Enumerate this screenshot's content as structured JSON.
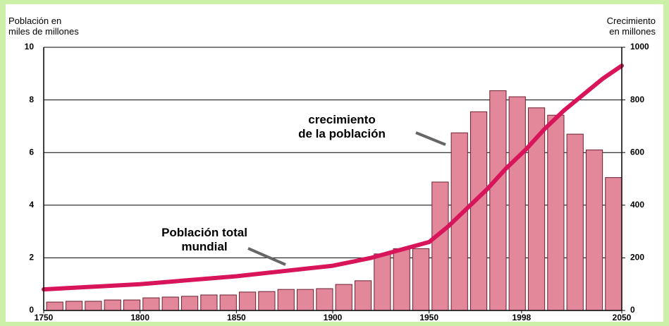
{
  "chart_data": {
    "type": "bar_line",
    "ylabel": [
      "Población en",
      "miles de millones"
    ],
    "y2label": [
      "Crecimiento",
      "en millones"
    ],
    "annotations": [
      {
        "lines": [
          "crecimiento",
          "de la población"
        ]
      },
      {
        "lines": [
          "Población total",
          "mundial"
        ]
      }
    ],
    "xlim": [
      1750,
      2050
    ],
    "xticks": [
      1750,
      1800,
      1850,
      1900,
      1950,
      1998,
      2050
    ],
    "ylim": [
      0,
      10
    ],
    "yticks": [
      0,
      2,
      4,
      6,
      8,
      10
    ],
    "y2lim": [
      0,
      1000
    ],
    "y2ticks": [
      0,
      200,
      400,
      600,
      800,
      1000
    ],
    "grid": true,
    "bars": {
      "axis": "y2",
      "color": "#e3879a",
      "x": [
        1760,
        1770,
        1780,
        1790,
        1800,
        1810,
        1820,
        1830,
        1840,
        1850,
        1860,
        1870,
        1880,
        1890,
        1900,
        1910,
        1920,
        1930,
        1940,
        1950,
        1960,
        1970,
        1980,
        1990,
        2000,
        2010,
        2020,
        2030,
        2040,
        2050
      ],
      "values": [
        32,
        35,
        35,
        40,
        40,
        48,
        51,
        54,
        59,
        59,
        70,
        72,
        80,
        80,
        83,
        99,
        113,
        215,
        235,
        235,
        488,
        675,
        755,
        835,
        812,
        770,
        742,
        670,
        610,
        505
      ]
    },
    "line": {
      "color": "#d8145a",
      "x": [
        1750,
        1800,
        1850,
        1900,
        1920,
        1950,
        1960,
        1970,
        1980,
        1990,
        2000,
        2010,
        2020,
        2030,
        2040,
        2050
      ],
      "values": [
        0.8,
        1.0,
        1.3,
        1.7,
        2.0,
        2.6,
        3.2,
        3.9,
        4.6,
        5.4,
        6.1,
        6.9,
        7.6,
        8.2,
        8.8,
        9.3
      ]
    }
  }
}
